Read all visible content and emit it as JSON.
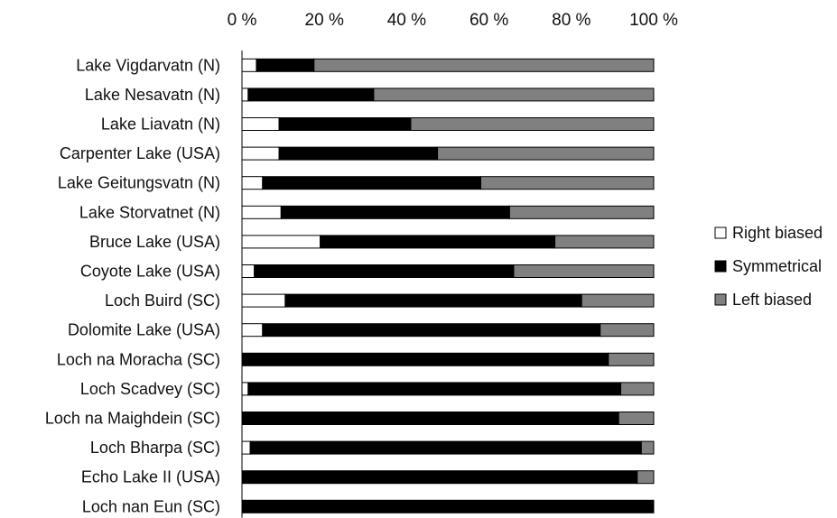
{
  "chart_data": {
    "type": "bar",
    "orientation": "horizontal",
    "stacked": "percent",
    "categories": [
      "Lake Vigdarvatn (N)",
      "Lake Nesavatn (N)",
      "Lake Liavatn (N)",
      "Carpenter Lake (USA)",
      "Lake Geitungsvatn (N)",
      "Lake Storvatnet (N)",
      "Bruce Lake (USA)",
      "Coyote Lake (USA)",
      "Loch Buird (SC)",
      "Dolomite Lake (USA)",
      "Loch na Moracha (SC)",
      "Loch Scadvey (SC)",
      "Loch na Maighdein (SC)",
      "Loch Bharpa (SC)",
      "Echo Lake II (USA)",
      "Loch nan Eun (SC)"
    ],
    "series": [
      {
        "name": "Right biased",
        "color": "#ffffff",
        "values": [
          3.5,
          1.5,
          9,
          9,
          5,
          9.5,
          19,
          3,
          10.5,
          5,
          0,
          1.5,
          0,
          2,
          0,
          0
        ]
      },
      {
        "name": "Symmetrical",
        "color": "#000000",
        "values": [
          14,
          30.5,
          32,
          38.5,
          53,
          55.5,
          57,
          63,
          72,
          82,
          89,
          90.5,
          91.5,
          95,
          96,
          100
        ]
      },
      {
        "name": "Left biased",
        "color": "#808080",
        "values": [
          82.5,
          68,
          59,
          52.5,
          42,
          35,
          24,
          34,
          17.5,
          13,
          11,
          8,
          8.5,
          3,
          4,
          0
        ]
      }
    ],
    "x_ticks": [
      "0 %",
      "20 %",
      "40 %",
      "60 %",
      "80 %",
      "100 %"
    ],
    "xlim": [
      0,
      100
    ],
    "title": "",
    "xlabel": "",
    "ylabel": "",
    "grid": false,
    "legend_position": "right"
  }
}
